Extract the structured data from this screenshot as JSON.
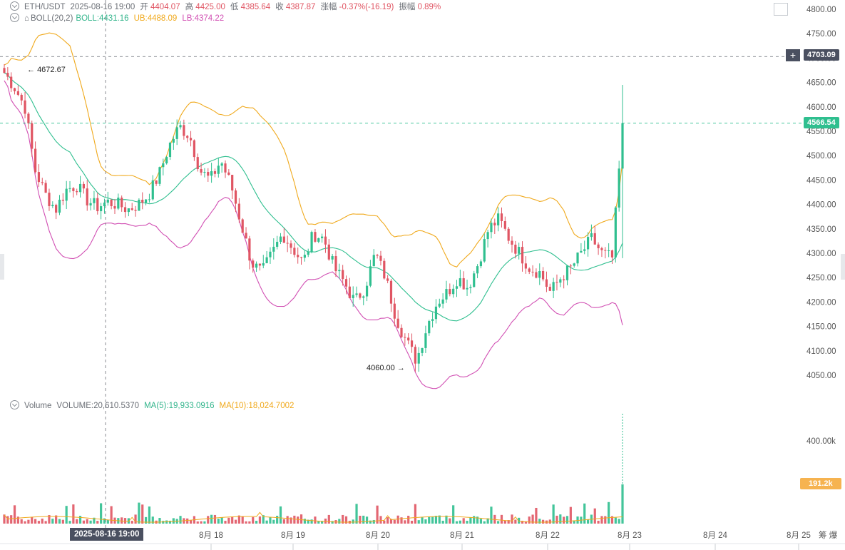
{
  "header": {
    "pair": "ETH/USDT",
    "datetime": "2025-08-16 19:00",
    "open_label": "开",
    "open": "4404.07",
    "high_label": "高",
    "high": "4425.00",
    "low_label": "低",
    "low": "4385.64",
    "close_label": "收",
    "close": "4387.87",
    "change_label": "涨幅",
    "change": "-0.37%(-16.19)",
    "amp_label": "振幅",
    "amp": "0.89%"
  },
  "boll": {
    "label": "BOLL(20,2)",
    "boll": "BOLL:4431.16",
    "ub": "UB:4488.09",
    "lb": "LB:4374.22"
  },
  "volume": {
    "label": "Volume",
    "value": "VOLUME:20,610.5370",
    "ma5": "MA(5):19,933.0916",
    "ma10": "MA(10):18,024.7002",
    "axis_label": "400.00k",
    "current_tag": "191.2k"
  },
  "tags": {
    "line_price": "4703.09",
    "last_price": "4566.54",
    "max_price": "4672.67",
    "min_price": "4060.00",
    "crosshair_time": "2025-08-16 19:00"
  },
  "chart_data": {
    "type": "candlestick",
    "price_ticks": [
      "4800.00",
      "4750.00",
      "4700.00",
      "4650.00",
      "4600.00",
      "4550.00",
      "4500.00",
      "4450.00",
      "4400.00",
      "4350.00",
      "4300.00",
      "4250.00",
      "4200.00",
      "4150.00",
      "4100.00",
      "4050.00"
    ],
    "ylim": [
      4035,
      4810
    ],
    "x_labels": [
      "8月 18",
      "8月 19",
      "8月 20",
      "8月 21",
      "8月 22",
      "8月 23",
      "8月 24",
      "8月 25"
    ],
    "x_extra": "筹 爆",
    "series_close_path": [
      4670,
      4640,
      4600,
      4470,
      4420,
      4390,
      4430,
      4440,
      4410,
      4395,
      4405,
      4400,
      4390,
      4400,
      4420,
      4460,
      4520,
      4560,
      4540,
      4470,
      4450,
      4490,
      4440,
      4360,
      4280,
      4260,
      4300,
      4340,
      4310,
      4280,
      4340,
      4330,
      4270,
      4240,
      4200,
      4230,
      4300,
      4250,
      4170,
      4120,
      4080,
      4150,
      4200,
      4220,
      4250,
      4230,
      4280,
      4350,
      4370,
      4330,
      4300,
      4270,
      4260,
      4220,
      4250,
      4270,
      4300,
      4330,
      4300,
      4290,
      4560
    ],
    "colors": {
      "up": "#2fbf8f",
      "down": "#e05563",
      "ub": "#f0a91c",
      "mid": "#2fbf8f",
      "lb": "#d14fb3"
    }
  }
}
